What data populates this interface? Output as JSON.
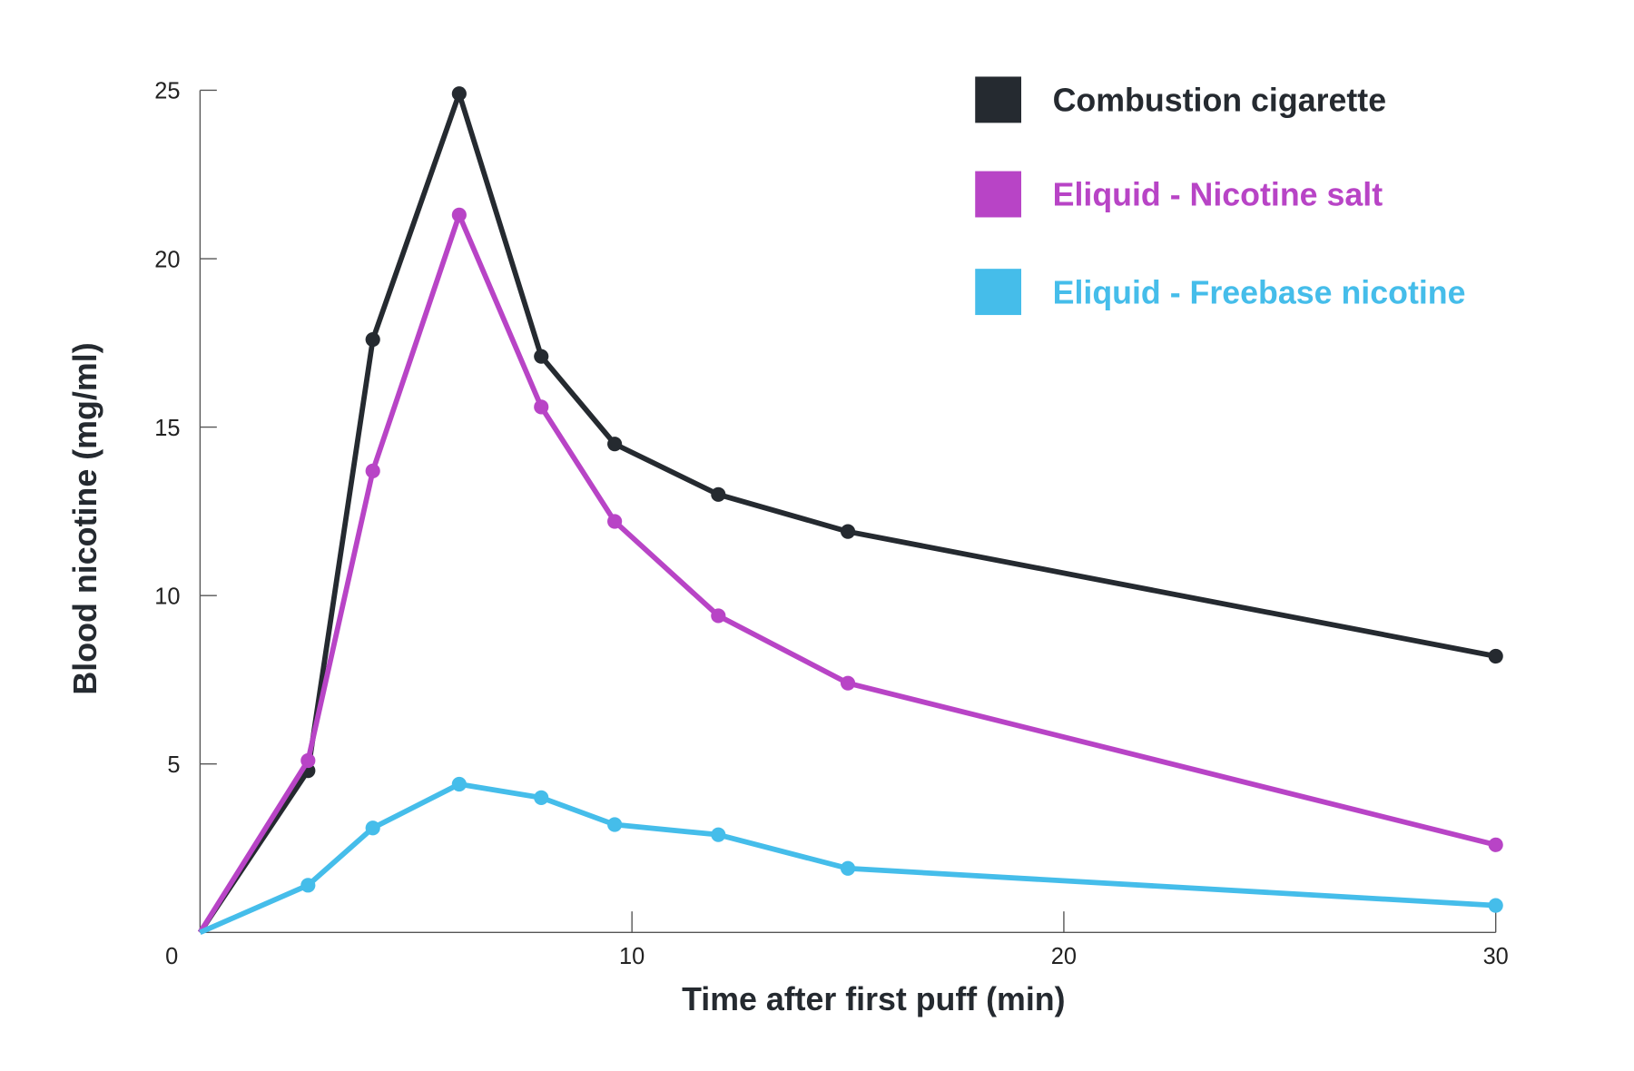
{
  "chart_data": {
    "type": "line",
    "title": "",
    "xlabel": "Time after first puff (min)",
    "ylabel": "Blood nicotine (mg/ml)",
    "xlim": [
      0,
      30
    ],
    "ylim": [
      0,
      25
    ],
    "xticks": [
      0,
      10,
      20,
      30
    ],
    "yticks": [
      5,
      10,
      15,
      20,
      25
    ],
    "x_tick_labels": [
      "0",
      "10",
      "20",
      "30"
    ],
    "y_tick_labels": [
      "5",
      "10",
      "15",
      "20",
      "25"
    ],
    "grid": false,
    "legend_position": "top-right",
    "x": [
      0,
      2.5,
      4,
      6,
      7.9,
      9.6,
      12,
      15,
      30
    ],
    "series": [
      {
        "name": "Combustion cigarette",
        "color": "#252a30",
        "values": [
          0,
          4.8,
          17.6,
          24.9,
          17.1,
          14.5,
          13.0,
          11.9,
          8.2
        ]
      },
      {
        "name": "Eliquid - Nicotine salt",
        "color": "#b844c6",
        "values": [
          0,
          5.1,
          13.7,
          21.3,
          15.6,
          12.2,
          9.4,
          7.4,
          2.6
        ]
      },
      {
        "name": "Eliquid - Freebase nicotine",
        "color": "#45bdea",
        "values": [
          0,
          1.4,
          3.1,
          4.4,
          4.0,
          3.2,
          2.9,
          1.9,
          0.8
        ]
      }
    ]
  }
}
